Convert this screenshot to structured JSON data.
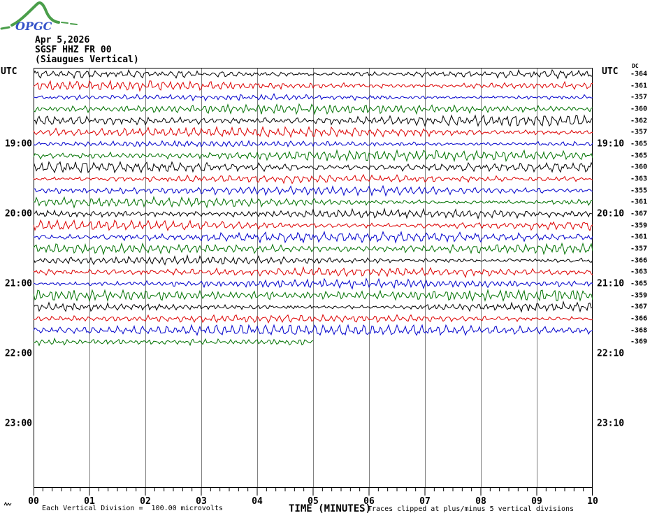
{
  "logo": {
    "text": "OPGC",
    "text_color": "#3352c8",
    "curve_color": "#4a9e4a"
  },
  "header": {
    "date": "Apr 5,2026",
    "station": "SGSF HHZ FR 00",
    "location": "(Siaugues Vertical)"
  },
  "axes": {
    "utc_left": "UTC",
    "utc_right": "UTC",
    "dc_header": "DC",
    "left_times": [
      "19:00",
      "20:00",
      "21:00",
      "22:00",
      "23:00"
    ],
    "right_times": [
      "19:10",
      "20:10",
      "21:10",
      "22:10",
      "23:10"
    ],
    "x_ticks": [
      "00",
      "01",
      "02",
      "03",
      "04",
      "05",
      "06",
      "07",
      "08",
      "09",
      "10"
    ],
    "x_label": "TIME (MINUTES)"
  },
  "footer": {
    "scale_note": "Each Vertical Division =  100.00 microvolts",
    "clip_note": "Traces clipped at plus/minus 5 vertical divisions"
  },
  "chart_data": {
    "type": "line",
    "title": "OPGC helicorder SGSF HHZ FR 00 (Siaugues Vertical) Apr 5,2026",
    "xlabel": "TIME (MINUTES)",
    "x_range_minutes": [
      0,
      10
    ],
    "minutes_per_row": 10,
    "rows_per_hour": 6,
    "total_rows_displayed": 36,
    "first_row_start_utc": "18:00",
    "division_microvolts": 100.0,
    "clip_divisions": 5,
    "grid": true,
    "colors": {
      "black": "#000000",
      "red": "#dd0000",
      "blue": "#0000cc",
      "green": "#007200",
      "grid": "#808080"
    },
    "traces": [
      {
        "start": "18:00",
        "end": "18:10",
        "color": "black",
        "dc": -364,
        "duration_min": 10
      },
      {
        "start": "18:10",
        "end": "18:20",
        "color": "red",
        "dc": -361,
        "duration_min": 10
      },
      {
        "start": "18:20",
        "end": "18:30",
        "color": "blue",
        "dc": -357,
        "duration_min": 10
      },
      {
        "start": "18:30",
        "end": "18:40",
        "color": "green",
        "dc": -360,
        "duration_min": 10
      },
      {
        "start": "18:40",
        "end": "18:50",
        "color": "black",
        "dc": -362,
        "duration_min": 10
      },
      {
        "start": "18:50",
        "end": "19:00",
        "color": "red",
        "dc": -357,
        "duration_min": 10
      },
      {
        "start": "19:00",
        "end": "19:10",
        "color": "blue",
        "dc": -365,
        "duration_min": 10
      },
      {
        "start": "19:10",
        "end": "19:20",
        "color": "green",
        "dc": -365,
        "duration_min": 10
      },
      {
        "start": "19:20",
        "end": "19:30",
        "color": "black",
        "dc": -360,
        "duration_min": 10
      },
      {
        "start": "19:30",
        "end": "19:40",
        "color": "red",
        "dc": -363,
        "duration_min": 10
      },
      {
        "start": "19:40",
        "end": "19:50",
        "color": "blue",
        "dc": -355,
        "duration_min": 10
      },
      {
        "start": "19:50",
        "end": "20:00",
        "color": "green",
        "dc": -361,
        "duration_min": 10
      },
      {
        "start": "20:00",
        "end": "20:10",
        "color": "black",
        "dc": -367,
        "duration_min": 10
      },
      {
        "start": "20:10",
        "end": "20:20",
        "color": "red",
        "dc": -359,
        "duration_min": 10
      },
      {
        "start": "20:20",
        "end": "20:30",
        "color": "blue",
        "dc": -361,
        "duration_min": 10
      },
      {
        "start": "20:30",
        "end": "20:40",
        "color": "green",
        "dc": -357,
        "duration_min": 10
      },
      {
        "start": "20:40",
        "end": "20:50",
        "color": "black",
        "dc": -366,
        "duration_min": 10
      },
      {
        "start": "20:50",
        "end": "21:00",
        "color": "red",
        "dc": -363,
        "duration_min": 10
      },
      {
        "start": "21:00",
        "end": "21:10",
        "color": "blue",
        "dc": -365,
        "duration_min": 10
      },
      {
        "start": "21:10",
        "end": "21:20",
        "color": "green",
        "dc": -359,
        "duration_min": 10
      },
      {
        "start": "21:20",
        "end": "21:30",
        "color": "black",
        "dc": -367,
        "duration_min": 10
      },
      {
        "start": "21:30",
        "end": "21:40",
        "color": "red",
        "dc": -366,
        "duration_min": 10
      },
      {
        "start": "21:40",
        "end": "21:50",
        "color": "blue",
        "dc": -368,
        "duration_min": 10
      },
      {
        "start": "21:50",
        "end": "21:55",
        "color": "green",
        "dc": -369,
        "duration_min": 5
      }
    ],
    "waveform_note": "continuous background seismic noise, no clipped events visible"
  }
}
